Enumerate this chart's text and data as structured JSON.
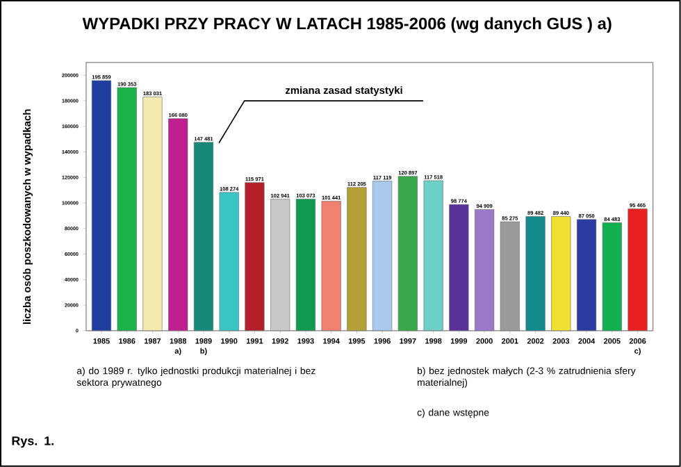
{
  "chart_data": {
    "type": "bar",
    "title": "WYPADKI PRZY PRACY W LATACH 1985-2006 (wg  danych GUS ) a)",
    "ylabel": "liczba osób poszkodowanych w wypadkach",
    "categories": [
      "1985",
      "1986",
      "1987",
      "1988",
      "1989",
      "1990",
      "1991",
      "1992",
      "1993",
      "1994",
      "1995",
      "1996",
      "1997",
      "1998",
      "1999",
      "2000",
      "2001",
      "2002",
      "2003",
      "2004",
      "2005",
      "2006"
    ],
    "values": [
      195859,
      190353,
      183031,
      166080,
      147481,
      108274,
      115971,
      102941,
      103073,
      101441,
      112205,
      117119,
      120897,
      117518,
      98774,
      94909,
      85275,
      89482,
      89440,
      87050,
      84483,
      95465
    ],
    "value_labels": [
      "195 859",
      "190 353",
      "183 031",
      "166 080",
      "147 481",
      "108 274",
      "115 971",
      "102 941",
      "103 073",
      "101 441",
      "112 205",
      "117 119",
      "120 897",
      "117 518",
      "98 774",
      "94 909",
      "85 275",
      "89 482",
      "89 440",
      "87 050",
      "84 483",
      "95 465"
    ],
    "colors": [
      "#1f3f9f",
      "#19b34a",
      "#f5eab0",
      "#c0208f",
      "#15887a",
      "#3ac4c4",
      "#b3202a",
      "#c8c8c8",
      "#0f9a50",
      "#f08070",
      "#b5a035",
      "#a8c8ec",
      "#3aa84a",
      "#6ccfc8",
      "#5a2f9a",
      "#9a7ac8",
      "#9a9a9a",
      "#108a8a",
      "#f0e030",
      "#2a3aa0",
      "#10b050",
      "#e82020"
    ],
    "ylim": [
      0,
      210000
    ],
    "yticks": [
      0,
      20000,
      40000,
      60000,
      80000,
      100000,
      120000,
      140000,
      160000,
      180000,
      200000
    ],
    "grid": false,
    "annotations": [
      "zmiana zasad statystyki",
      "a)",
      "b)",
      "c)",
      "a) do 1989 r. tylko jednostki produkcji materialnej i bez sektora prywatnego",
      "b) bez jednostek małych (2-3 % zatrudnienia sfery materialnej)",
      "c) dane wstępne",
      "Rys. 1."
    ]
  }
}
